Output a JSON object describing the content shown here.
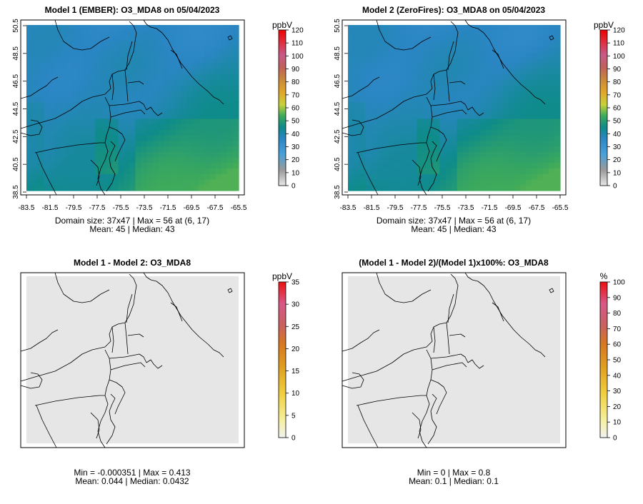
{
  "panels": [
    {
      "id": "p1",
      "title": "Model 1 (EMBER): O3_MDA8 on 05/04/2023",
      "unit": "ppbV",
      "colorbar": {
        "min": 0,
        "max": 120,
        "ticks": [
          "0",
          "10",
          "20",
          "30",
          "40",
          "50",
          "60",
          "70",
          "80",
          "90",
          "100",
          "110",
          "120"
        ]
      },
      "stats_line1": "Domain size: 37x47 | Max = 56 at (6, 17)",
      "stats_line2": "Mean: 45 |  Median: 43",
      "x_ticks": [
        "-83.5",
        "-81.5",
        "-79.5",
        "-77.5",
        "-75.5",
        "-73.5",
        "-71.5",
        "-69.5",
        "-67.5",
        "-65.5"
      ],
      "y_ticks": [
        "38.5",
        "40.5",
        "42.5",
        "44.5",
        "46.5",
        "48.5",
        "50.5"
      ]
    },
    {
      "id": "p2",
      "title": "Model 2 (ZeroFires): O3_MDA8 on 05/04/2023",
      "unit": "ppbV",
      "colorbar": {
        "min": 0,
        "max": 120,
        "ticks": [
          "0",
          "10",
          "20",
          "30",
          "40",
          "50",
          "60",
          "70",
          "80",
          "90",
          "100",
          "110",
          "120"
        ]
      },
      "stats_line1": "Domain size: 37x47 | Max = 56 at (6, 17)",
      "stats_line2": "Mean: 45 |  Median: 43",
      "x_ticks": [
        "-83.5",
        "-81.5",
        "-79.5",
        "-77.5",
        "-75.5",
        "-73.5",
        "-71.5",
        "-69.5",
        "-67.5",
        "-65.5"
      ],
      "y_ticks": [
        "38.5",
        "40.5",
        "42.5",
        "44.5",
        "46.5",
        "48.5",
        "50.5"
      ]
    },
    {
      "id": "p3",
      "title": "Model 1 - Model 2: O3_MDA8",
      "unit": "ppbV",
      "colorbar": {
        "min": 0,
        "max": 35,
        "ticks": [
          "0",
          "5",
          "10",
          "15",
          "20",
          "25",
          "30",
          "35"
        ]
      },
      "stats_line1": "Min = -0.000351 | Max = 0.413",
      "stats_line2": "Mean: 0.044 |  Median: 0.0432"
    },
    {
      "id": "p4",
      "title": "(Model 1 - Model 2)/(Model 1)x100%: O3_MDA8",
      "unit": "%",
      "colorbar": {
        "min": 0,
        "max": 100,
        "ticks": [
          "0",
          "10",
          "20",
          "30",
          "40",
          "50",
          "60",
          "70",
          "80",
          "90",
          "100"
        ]
      },
      "stats_line1": "Min = 0 | Max = 0.8",
      "stats_line2": "Mean: 0.1 |  Median: 0.1"
    }
  ],
  "chart_data": [
    {
      "type": "heatmap",
      "title": "Model 1 (EMBER): O3_MDA8 on 05/04/2023",
      "variable": "O3_MDA8",
      "unit": "ppbV",
      "xlim": [
        -83.5,
        -65.5
      ],
      "ylim": [
        38.5,
        50.5
      ],
      "color_range": [
        0,
        120
      ],
      "domain_size": "37x47",
      "max": 56,
      "max_at": [
        6,
        17
      ],
      "mean": 45,
      "median": 43
    },
    {
      "type": "heatmap",
      "title": "Model 2 (ZeroFires): O3_MDA8 on 05/04/2023",
      "variable": "O3_MDA8",
      "unit": "ppbV",
      "xlim": [
        -83.5,
        -65.5
      ],
      "ylim": [
        38.5,
        50.5
      ],
      "color_range": [
        0,
        120
      ],
      "domain_size": "37x47",
      "max": 56,
      "max_at": [
        6,
        17
      ],
      "mean": 45,
      "median": 43
    },
    {
      "type": "heatmap",
      "title": "Model 1 - Model 2: O3_MDA8",
      "variable": "O3_MDA8",
      "unit": "ppbV",
      "color_range": [
        0,
        35
      ],
      "min": -0.000351,
      "max": 0.413,
      "mean": 0.044,
      "median": 0.0432
    },
    {
      "type": "heatmap",
      "title": "(Model 1 - Model 2)/(Model 1)x100%: O3_MDA8",
      "variable": "O3_MDA8",
      "unit": "%",
      "color_range": [
        0,
        100
      ],
      "min": 0,
      "max": 0.8,
      "mean": 0.1,
      "median": 0.1
    }
  ]
}
